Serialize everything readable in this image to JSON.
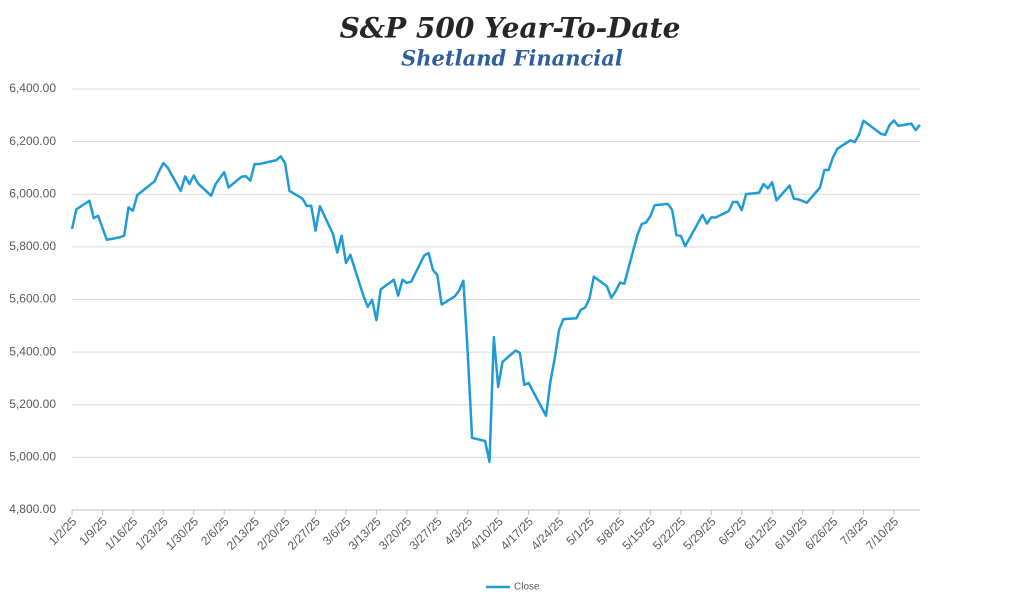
{
  "chart_data": {
    "type": "line",
    "title": "S&P 500 Year-To-Date",
    "subtitle": "Shetland Financial",
    "x": [
      "1/2/25",
      "1/3/25",
      "1/6/25",
      "1/7/25",
      "1/8/25",
      "1/10/25",
      "1/13/25",
      "1/14/25",
      "1/15/25",
      "1/16/25",
      "1/17/25",
      "1/21/25",
      "1/22/25",
      "1/23/25",
      "1/24/25",
      "1/27/25",
      "1/28/25",
      "1/29/25",
      "1/30/25",
      "1/31/25",
      "2/3/25",
      "2/4/25",
      "2/5/25",
      "2/6/25",
      "2/7/25",
      "2/10/25",
      "2/11/25",
      "2/12/25",
      "2/13/25",
      "2/14/25",
      "2/18/25",
      "2/19/25",
      "2/20/25",
      "2/21/25",
      "2/24/25",
      "2/25/25",
      "2/26/25",
      "2/27/25",
      "2/28/25",
      "3/3/25",
      "3/4/25",
      "3/5/25",
      "3/6/25",
      "3/7/25",
      "3/10/25",
      "3/11/25",
      "3/12/25",
      "3/13/25",
      "3/14/25",
      "3/17/25",
      "3/18/25",
      "3/19/25",
      "3/20/25",
      "3/21/25",
      "3/24/25",
      "3/25/25",
      "3/26/25",
      "3/27/25",
      "3/28/25",
      "3/31/25",
      "4/1/25",
      "4/2/25",
      "4/3/25",
      "4/4/25",
      "4/7/25",
      "4/8/25",
      "4/9/25",
      "4/10/25",
      "4/11/25",
      "4/14/25",
      "4/15/25",
      "4/16/25",
      "4/17/25",
      "4/21/25",
      "4/22/25",
      "4/23/25",
      "4/24/25",
      "4/25/25",
      "4/28/25",
      "4/29/25",
      "4/30/25",
      "5/1/25",
      "5/2/25",
      "5/5/25",
      "5/6/25",
      "5/7/25",
      "5/8/25",
      "5/9/25",
      "5/12/25",
      "5/13/25",
      "5/14/25",
      "5/15/25",
      "5/16/25",
      "5/19/25",
      "5/20/25",
      "5/21/25",
      "5/22/25",
      "5/23/25",
      "5/27/25",
      "5/28/25",
      "5/29/25",
      "5/30/25",
      "6/2/25",
      "6/3/25",
      "6/4/25",
      "6/5/25",
      "6/6/25",
      "6/9/25",
      "6/10/25",
      "6/11/25",
      "6/12/25",
      "6/13/25",
      "6/16/25",
      "6/17/25",
      "6/18/25",
      "6/20/25",
      "6/23/25",
      "6/24/25",
      "6/25/25",
      "6/26/25",
      "6/27/25",
      "6/30/25",
      "7/1/25",
      "7/2/25",
      "7/3/25",
      "7/7/25",
      "7/8/25",
      "7/9/25",
      "7/10/25",
      "7/11/25",
      "7/14/25",
      "7/15/25",
      "7/16/25"
    ],
    "series": [
      {
        "name": "Close",
        "color": "#1f9bd7",
        "values": [
          5868.55,
          5942.47,
          5975.38,
          5909.03,
          5918.25,
          5827.04,
          5836.22,
          5842.91,
          5949.91,
          5937.34,
          5996.66,
          6049.24,
          6086.37,
          6118.71,
          6101.24,
          6012.28,
          6067.7,
          6039.31,
          6071.17,
          6040.53,
          5994.57,
          6037.88,
          6061.48,
          6083.57,
          6025.99,
          6066.44,
          6068.5,
          6051.97,
          6115.07,
          6114.63,
          6129.58,
          6144.15,
          6117.52,
          6013.13,
          5983.25,
          5955.25,
          5956.06,
          5861.57,
          5954.5,
          5849.72,
          5778.15,
          5842.63,
          5738.52,
          5770.2,
          5614.56,
          5572.07,
          5599.3,
          5521.52,
          5638.94,
          5675.12,
          5614.66,
          5675.29,
          5662.89,
          5667.56,
          5767.57,
          5776.65,
          5712.2,
          5693.31,
          5580.94,
          5611.85,
          5633.07,
          5670.97,
          5396.52,
          5074.08,
          5062.25,
          4982.77,
          5456.9,
          5268.05,
          5363.36,
          5405.97,
          5396.63,
          5275.7,
          5282.7,
          5158.2,
          5287.76,
          5375.86,
          5484.77,
          5525.21,
          5528.75,
          5560.83,
          5569.06,
          5604.14,
          5686.67,
          5650.38,
          5606.91,
          5631.28,
          5663.94,
          5659.91,
          5844.19,
          5886.55,
          5892.58,
          5916.93,
          5958.38,
          5963.6,
          5940.46,
          5844.61,
          5842.01,
          5802.82,
          5921.54,
          5888.55,
          5912.17,
          5911.69,
          5935.94,
          5970.37,
          5970.81,
          5939.3,
          6000.36,
          6005.88,
          6038.81,
          6022.24,
          6045.26,
          5976.97,
          6033.11,
          5982.72,
          5980.87,
          5967.84,
          6025.17,
          6092.18,
          6092.16,
          6141.02,
          6173.07,
          6204.95,
          6198.01,
          6227.42,
          6279.35,
          6229.98,
          6225.52,
          6263.26,
          6280.46,
          6259.75,
          6268.56,
          6243.76,
          6263.7
        ]
      }
    ],
    "xlim": [
      "1/2/25",
      "7/16/25"
    ],
    "xticks": [
      "1/2/25",
      "1/9/25",
      "1/16/25",
      "1/23/25",
      "1/30/25",
      "2/6/25",
      "2/13/25",
      "2/20/25",
      "2/27/25",
      "3/6/25",
      "3/13/25",
      "3/20/25",
      "3/27/25",
      "4/3/25",
      "4/10/25",
      "4/17/25",
      "4/24/25",
      "5/1/25",
      "5/8/25",
      "5/15/25",
      "5/22/25",
      "5/29/25",
      "6/5/25",
      "6/12/25",
      "6/19/25",
      "6/26/25",
      "7/3/25",
      "7/10/25"
    ],
    "ylim": [
      4800,
      6400
    ],
    "yticks": [
      {
        "value": 4800,
        "label": "4,800.00"
      },
      {
        "value": 5000,
        "label": "5,000.00"
      },
      {
        "value": 5200,
        "label": "5,200.00"
      },
      {
        "value": 5400,
        "label": "5,400.00"
      },
      {
        "value": 5600,
        "label": "5,600.00"
      },
      {
        "value": 5800,
        "label": "5,800.00"
      },
      {
        "value": 6000,
        "label": "6,000.00"
      },
      {
        "value": 6200,
        "label": "6,200.00"
      },
      {
        "value": 6400,
        "label": "6,400.00"
      }
    ],
    "grid": true,
    "legend": "bottom"
  }
}
